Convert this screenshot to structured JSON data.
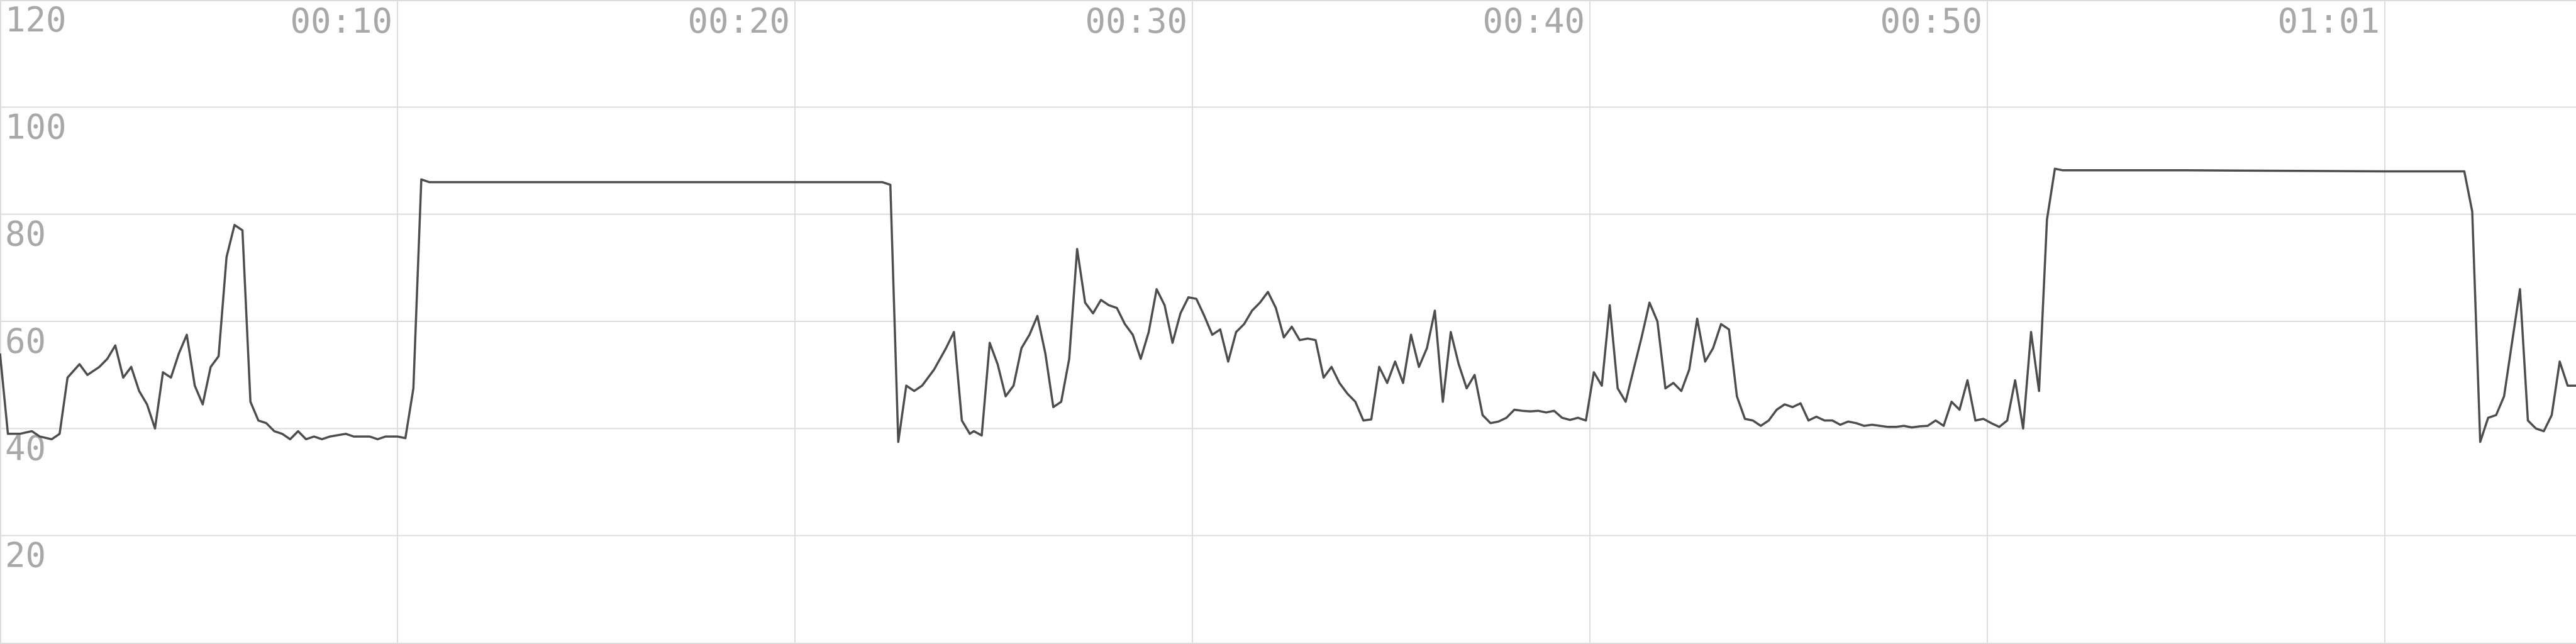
{
  "chart_data": {
    "type": "line",
    "title": "",
    "xlabel": "",
    "ylabel": "",
    "ylim": [
      0,
      120
    ],
    "xlim": [
      0,
      6.5
    ],
    "x_unit": "minutes",
    "grid": true,
    "legend": "none",
    "colors": {
      "line": "#4d4d4d",
      "grid": "#dcdcdc",
      "tick_text": "#a8a8a8",
      "background": "#ffffff"
    },
    "y_ticks": [
      {
        "value": 120,
        "label": "120"
      },
      {
        "value": 100,
        "label": "100"
      },
      {
        "value": 80,
        "label": "80"
      },
      {
        "value": 60,
        "label": "60"
      },
      {
        "value": 40,
        "label": "40"
      },
      {
        "value": 20,
        "label": "20"
      }
    ],
    "x_ticks": [
      {
        "value": 1,
        "label": "00:10"
      },
      {
        "value": 2,
        "label": "00:20"
      },
      {
        "value": 3,
        "label": "00:30"
      },
      {
        "value": 4,
        "label": "00:40"
      },
      {
        "value": 5,
        "label": "00:50"
      },
      {
        "value": 6,
        "label": "01:01"
      }
    ],
    "series": [
      {
        "points": [
          [
            0.0,
            54
          ],
          [
            0.02,
            39
          ],
          [
            0.05,
            39
          ],
          [
            0.08,
            39.5
          ],
          [
            0.1,
            38.5
          ],
          [
            0.13,
            38
          ],
          [
            0.15,
            39
          ],
          [
            0.17,
            49.5
          ],
          [
            0.2,
            52
          ],
          [
            0.22,
            50
          ],
          [
            0.25,
            51.5
          ],
          [
            0.27,
            53
          ],
          [
            0.29,
            55.5
          ],
          [
            0.31,
            49.5
          ],
          [
            0.33,
            51.5
          ],
          [
            0.35,
            47
          ],
          [
            0.37,
            44.5
          ],
          [
            0.39,
            40
          ],
          [
            0.41,
            50.5
          ],
          [
            0.43,
            49.5
          ],
          [
            0.45,
            54
          ],
          [
            0.47,
            57.5
          ],
          [
            0.49,
            48
          ],
          [
            0.51,
            44.5
          ],
          [
            0.53,
            51.5
          ],
          [
            0.55,
            53.5
          ],
          [
            0.57,
            72
          ],
          [
            0.59,
            78
          ],
          [
            0.61,
            77
          ],
          [
            0.63,
            45
          ],
          [
            0.65,
            41.5
          ],
          [
            0.67,
            41
          ],
          [
            0.69,
            39.5
          ],
          [
            0.71,
            39
          ],
          [
            0.73,
            38
          ],
          [
            0.75,
            39.5
          ],
          [
            0.77,
            38
          ],
          [
            0.79,
            38.5
          ],
          [
            0.81,
            38
          ],
          [
            0.83,
            38.5
          ],
          [
            0.87,
            39
          ],
          [
            0.89,
            38.5
          ],
          [
            0.93,
            38.5
          ],
          [
            0.95,
            38
          ],
          [
            0.97,
            38.5
          ],
          [
            1.0,
            38.5
          ],
          [
            1.02,
            38.2
          ],
          [
            1.04,
            47.5
          ],
          [
            1.06,
            86.5
          ],
          [
            1.08,
            86
          ],
          [
            1.5,
            86
          ],
          [
            2.0,
            86
          ],
          [
            2.22,
            86
          ],
          [
            2.24,
            85.5
          ],
          [
            2.26,
            37.5
          ],
          [
            2.28,
            48
          ],
          [
            2.3,
            47
          ],
          [
            2.32,
            48
          ],
          [
            2.35,
            51
          ],
          [
            2.38,
            55
          ],
          [
            2.4,
            58
          ],
          [
            2.42,
            41.5
          ],
          [
            2.44,
            39
          ],
          [
            2.45,
            39.5
          ],
          [
            2.47,
            38.7
          ],
          [
            2.49,
            56
          ],
          [
            2.51,
            52
          ],
          [
            2.53,
            46
          ],
          [
            2.55,
            48
          ],
          [
            2.57,
            55
          ],
          [
            2.59,
            57.5
          ],
          [
            2.61,
            61
          ],
          [
            2.63,
            54
          ],
          [
            2.65,
            44
          ],
          [
            2.67,
            45
          ],
          [
            2.69,
            53
          ],
          [
            2.71,
            73.5
          ],
          [
            2.73,
            63.5
          ],
          [
            2.75,
            61.5
          ],
          [
            2.77,
            64
          ],
          [
            2.79,
            63
          ],
          [
            2.81,
            62.5
          ],
          [
            2.83,
            59.5
          ],
          [
            2.85,
            57.5
          ],
          [
            2.87,
            53
          ],
          [
            2.89,
            58
          ],
          [
            2.91,
            66
          ],
          [
            2.93,
            63
          ],
          [
            2.95,
            56
          ],
          [
            2.97,
            61.5
          ],
          [
            2.99,
            64.5
          ],
          [
            3.01,
            64.2
          ],
          [
            3.03,
            61
          ],
          [
            3.05,
            57.5
          ],
          [
            3.07,
            58.5
          ],
          [
            3.09,
            52.5
          ],
          [
            3.11,
            58
          ],
          [
            3.13,
            59.5
          ],
          [
            3.15,
            62
          ],
          [
            3.17,
            63.5
          ],
          [
            3.19,
            65.5
          ],
          [
            3.21,
            62.5
          ],
          [
            3.23,
            57
          ],
          [
            3.25,
            59
          ],
          [
            3.27,
            56.5
          ],
          [
            3.29,
            56.8
          ],
          [
            3.31,
            56.5
          ],
          [
            3.33,
            49.5
          ],
          [
            3.35,
            51.5
          ],
          [
            3.37,
            48.5
          ],
          [
            3.39,
            46.5
          ],
          [
            3.41,
            45
          ],
          [
            3.43,
            41.5
          ],
          [
            3.45,
            41.7
          ],
          [
            3.47,
            51.5
          ],
          [
            3.49,
            48.5
          ],
          [
            3.51,
            52.5
          ],
          [
            3.53,
            48.5
          ],
          [
            3.55,
            57.5
          ],
          [
            3.57,
            51.5
          ],
          [
            3.59,
            55
          ],
          [
            3.61,
            62
          ],
          [
            3.63,
            45
          ],
          [
            3.65,
            58
          ],
          [
            3.67,
            52
          ],
          [
            3.69,
            47.5
          ],
          [
            3.71,
            50
          ],
          [
            3.73,
            42.5
          ],
          [
            3.75,
            41
          ],
          [
            3.77,
            41.3
          ],
          [
            3.79,
            42
          ],
          [
            3.81,
            43.5
          ],
          [
            3.83,
            43.3
          ],
          [
            3.85,
            43.2
          ],
          [
            3.87,
            43.3
          ],
          [
            3.89,
            43
          ],
          [
            3.91,
            43.3
          ],
          [
            3.93,
            42
          ],
          [
            3.95,
            41.6
          ],
          [
            3.97,
            42
          ],
          [
            3.99,
            41.5
          ],
          [
            4.01,
            50.5
          ],
          [
            4.03,
            48
          ],
          [
            4.05,
            63
          ],
          [
            4.07,
            47.5
          ],
          [
            4.09,
            45
          ],
          [
            4.11,
            51
          ],
          [
            4.13,
            57
          ],
          [
            4.15,
            63.5
          ],
          [
            4.17,
            60
          ],
          [
            4.19,
            47.5
          ],
          [
            4.21,
            48.5
          ],
          [
            4.23,
            47
          ],
          [
            4.25,
            51
          ],
          [
            4.27,
            60.5
          ],
          [
            4.29,
            52.5
          ],
          [
            4.31,
            55
          ],
          [
            4.33,
            59.5
          ],
          [
            4.35,
            58.5
          ],
          [
            4.37,
            46
          ],
          [
            4.39,
            41.8
          ],
          [
            4.41,
            41.5
          ],
          [
            4.43,
            40.5
          ],
          [
            4.45,
            41.5
          ],
          [
            4.47,
            43.5
          ],
          [
            4.49,
            44.5
          ],
          [
            4.51,
            44
          ],
          [
            4.53,
            44.7
          ],
          [
            4.55,
            41.5
          ],
          [
            4.57,
            42.2
          ],
          [
            4.59,
            41.5
          ],
          [
            4.61,
            41.5
          ],
          [
            4.63,
            40.7
          ],
          [
            4.65,
            41.3
          ],
          [
            4.67,
            41
          ],
          [
            4.69,
            40.5
          ],
          [
            4.71,
            40.7
          ],
          [
            4.73,
            40.5
          ],
          [
            4.75,
            40.3
          ],
          [
            4.77,
            40.3
          ],
          [
            4.79,
            40.5
          ],
          [
            4.81,
            40.2
          ],
          [
            4.83,
            40.4
          ],
          [
            4.85,
            40.5
          ],
          [
            4.87,
            41.5
          ],
          [
            4.89,
            40.5
          ],
          [
            4.91,
            45
          ],
          [
            4.93,
            43.5
          ],
          [
            4.95,
            49
          ],
          [
            4.97,
            41.5
          ],
          [
            4.99,
            41.8
          ],
          [
            5.01,
            41
          ],
          [
            5.03,
            40.3
          ],
          [
            5.05,
            41.5
          ],
          [
            5.07,
            49
          ],
          [
            5.09,
            40
          ],
          [
            5.11,
            58
          ],
          [
            5.13,
            47
          ],
          [
            5.15,
            79
          ],
          [
            5.17,
            88.5
          ],
          [
            5.19,
            88.2
          ],
          [
            5.5,
            88.2
          ],
          [
            6.0,
            88
          ],
          [
            6.2,
            88
          ],
          [
            6.22,
            80.5
          ],
          [
            6.24,
            37.5
          ],
          [
            6.26,
            42
          ],
          [
            6.28,
            42.5
          ],
          [
            6.3,
            46
          ],
          [
            6.32,
            56
          ],
          [
            6.34,
            66
          ],
          [
            6.36,
            41.5
          ],
          [
            6.38,
            40
          ],
          [
            6.4,
            39.5
          ],
          [
            6.42,
            42.5
          ],
          [
            6.44,
            52.5
          ],
          [
            6.46,
            48
          ],
          [
            6.5,
            48
          ]
        ]
      }
    ]
  }
}
